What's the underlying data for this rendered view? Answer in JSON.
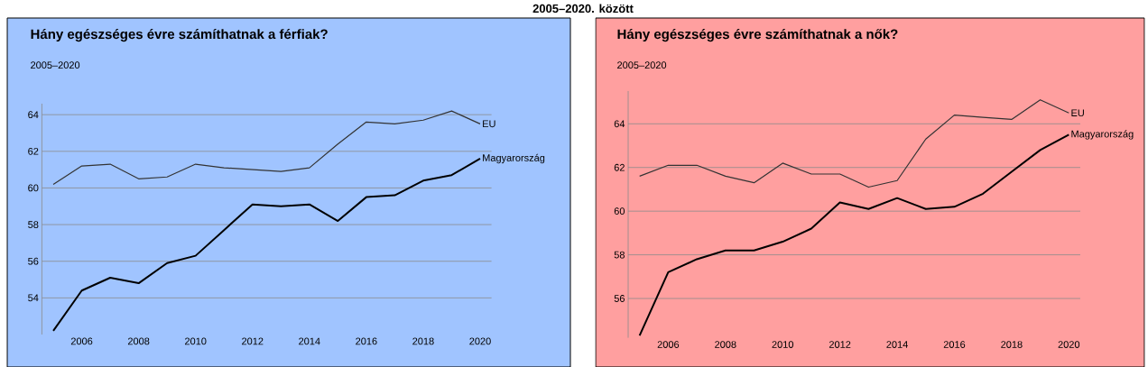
{
  "chart_data": [
    {
      "type": "line",
      "title": "Hány egészséges évre számíthatnak a férfiak?",
      "subtitle": "2005–2020",
      "annotations": [
        "2005–2020. között"
      ],
      "x": [
        2005,
        2006,
        2007,
        2008,
        2009,
        2010,
        2011,
        2012,
        2013,
        2014,
        2015,
        2016,
        2017,
        2018,
        2019,
        2020
      ],
      "series": [
        {
          "name": "EU",
          "color": "#333333",
          "values": [
            60.2,
            61.2,
            61.3,
            60.5,
            60.6,
            61.3,
            61.1,
            61.0,
            60.9,
            61.1,
            62.4,
            63.6,
            63.5,
            63.7,
            64.2,
            63.5
          ]
        },
        {
          "name": "Magyarország",
          "color": "#000000",
          "values": [
            52.2,
            54.4,
            55.1,
            54.8,
            55.9,
            56.3,
            57.7,
            59.1,
            59.0,
            59.1,
            58.2,
            59.5,
            59.6,
            60.4,
            60.7,
            61.6
          ]
        }
      ],
      "xlim": [
        2004.6,
        2020.4
      ],
      "ylim": [
        52,
        64.6
      ],
      "xticks": [
        2006,
        2008,
        2010,
        2012,
        2014,
        2016,
        2018,
        2020
      ],
      "yticks": [
        54,
        56,
        58,
        60,
        62,
        64
      ],
      "grid": "y",
      "legend": false,
      "marker": "none",
      "line_style": "solid"
    },
    {
      "type": "line",
      "title": "Hány egészséges évre számíthatnak a nők?",
      "subtitle": "2005–2020",
      "x": [
        2005,
        2006,
        2007,
        2008,
        2009,
        2010,
        2011,
        2012,
        2013,
        2014,
        2015,
        2016,
        2017,
        2018,
        2019,
        2020
      ],
      "series": [
        {
          "name": "EU",
          "color": "#333333",
          "values": [
            61.6,
            62.1,
            62.1,
            61.6,
            61.3,
            62.2,
            61.7,
            61.7,
            61.1,
            61.4,
            63.3,
            64.4,
            64.3,
            64.2,
            65.1,
            64.5
          ]
        },
        {
          "name": "Magyarország",
          "color": "#000000",
          "values": [
            54.3,
            57.2,
            57.8,
            58.2,
            58.2,
            58.6,
            59.2,
            60.4,
            60.1,
            60.6,
            60.1,
            60.2,
            60.8,
            61.8,
            62.8,
            63.5
          ]
        }
      ],
      "xlim": [
        2004.6,
        2020.4
      ],
      "ylim": [
        54.2,
        65.5
      ],
      "xticks": [
        2006,
        2008,
        2010,
        2012,
        2014,
        2016,
        2018,
        2020
      ],
      "yticks": [
        56,
        58,
        60,
        62,
        64
      ],
      "grid": "y",
      "legend": false,
      "marker": "none",
      "line_style": "solid"
    }
  ]
}
